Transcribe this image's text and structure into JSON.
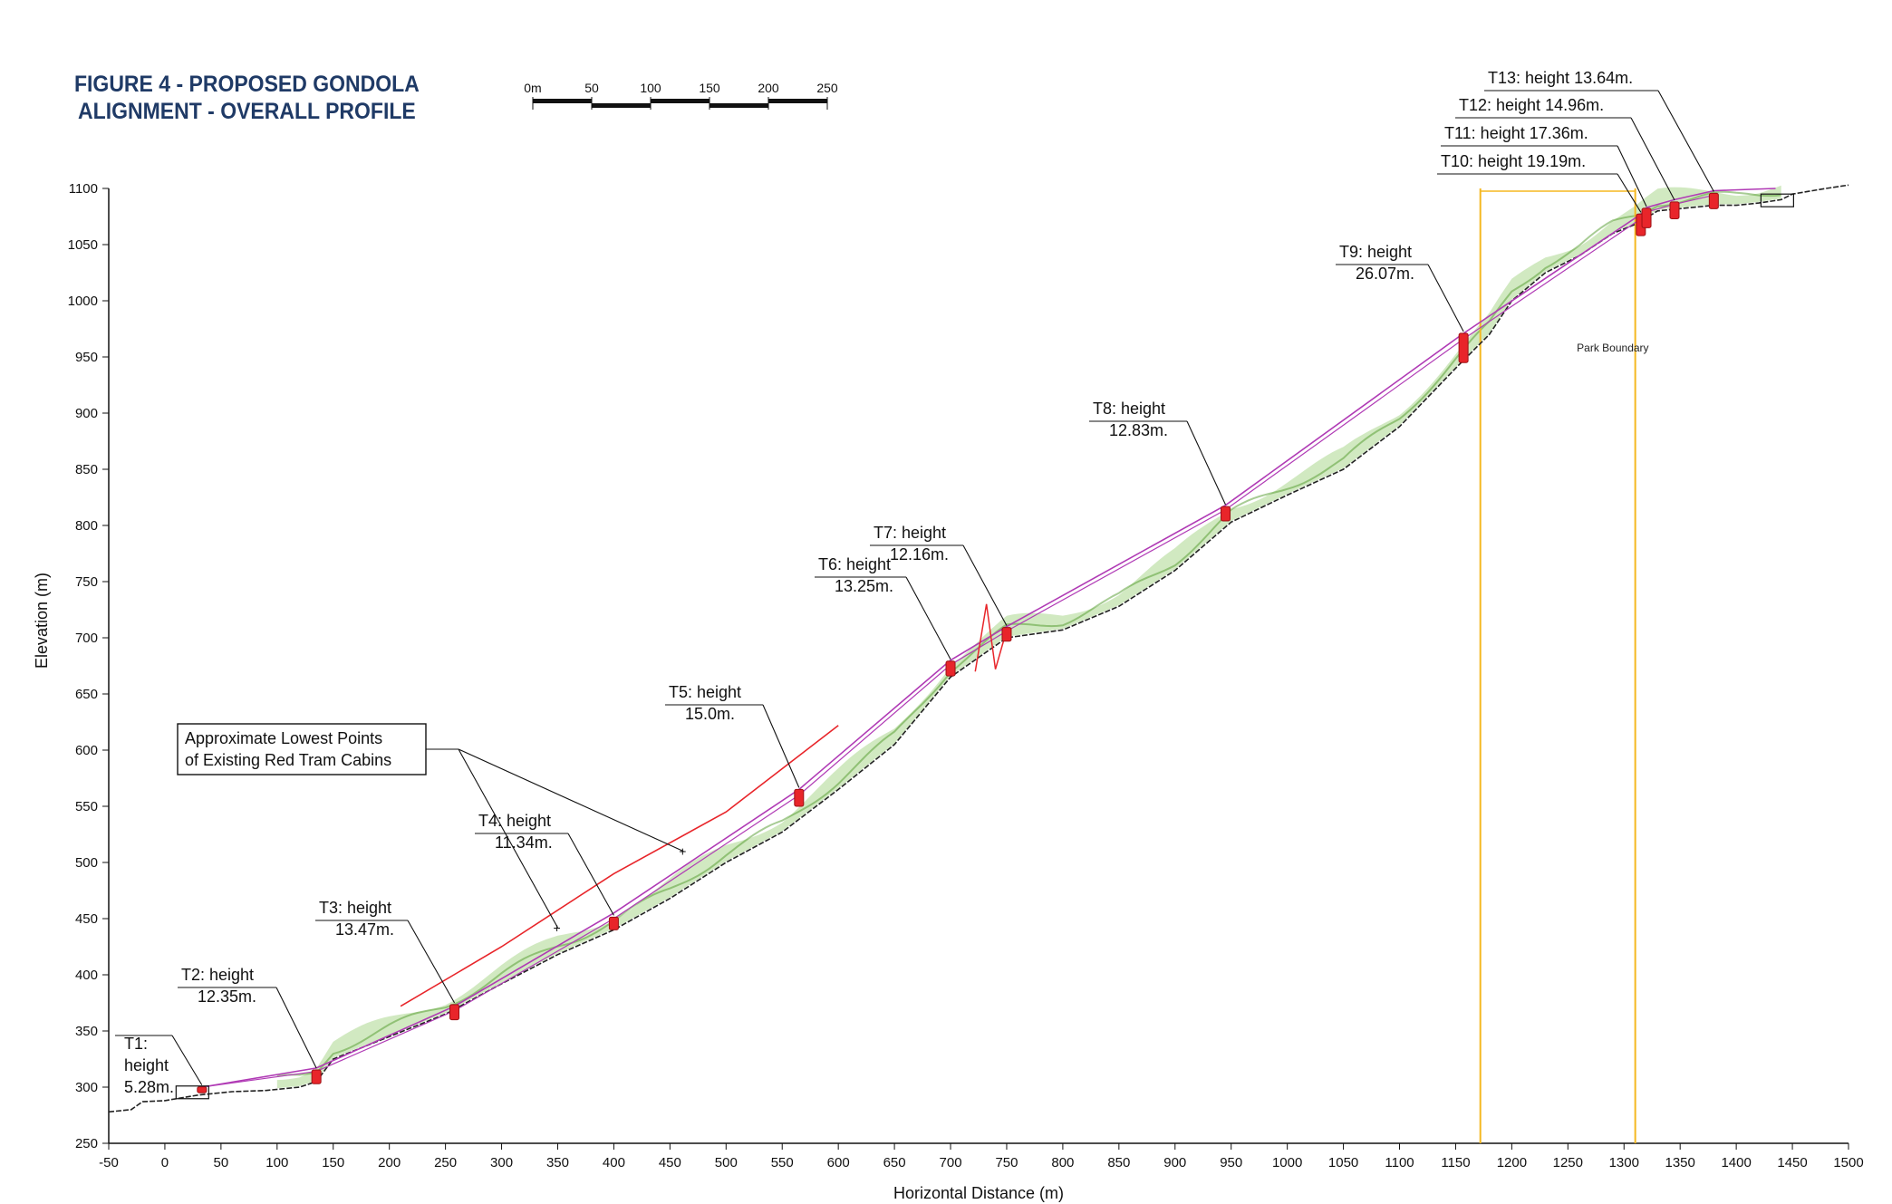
{
  "figure_title_line1": "FIGURE 4 - PROPOSED GONDOLA",
  "figure_title_line2": "ALIGNMENT - OVERALL PROFILE",
  "scale_bar": {
    "labels": [
      "0m",
      "50",
      "100",
      "150",
      "200",
      "250"
    ],
    "values": [
      0,
      50,
      100,
      150,
      200,
      250
    ]
  },
  "colors": {
    "title": "#1f3a66",
    "tower": "#e8252a",
    "cable": "#b03ab5",
    "ground": "#222222",
    "vegetation": "#7bbf4e",
    "cabin_line": "#e8252a",
    "park_boundary": "#f5b820"
  },
  "chart_data": {
    "type": "line",
    "xlabel": "Horizontal Distance (m)",
    "ylabel": "Elevation (m)",
    "xlim": [
      -50,
      1500
    ],
    "ylim": [
      250,
      1100
    ],
    "x_ticks": [
      -50,
      0,
      50,
      100,
      150,
      200,
      250,
      300,
      350,
      400,
      450,
      500,
      550,
      600,
      650,
      700,
      750,
      800,
      850,
      900,
      950,
      1000,
      1050,
      1100,
      1150,
      1200,
      1250,
      1300,
      1350,
      1400,
      1450,
      1500
    ],
    "y_ticks": [
      250,
      300,
      350,
      400,
      450,
      500,
      550,
      600,
      650,
      700,
      750,
      800,
      850,
      900,
      950,
      1000,
      1050,
      1100
    ],
    "grid": false,
    "ground_profile": {
      "x": [
        -50,
        -30,
        -20,
        0,
        30,
        60,
        90,
        120,
        135,
        150,
        200,
        250,
        300,
        350,
        400,
        450,
        500,
        550,
        600,
        650,
        700,
        750,
        800,
        850,
        900,
        950,
        1000,
        1050,
        1100,
        1150,
        1180,
        1200,
        1230,
        1260,
        1290,
        1310,
        1330,
        1350,
        1380,
        1400,
        1420,
        1440,
        1450,
        1480,
        1500
      ],
      "y": [
        278,
        280,
        287,
        288,
        293,
        296,
        297,
        300,
        305,
        325,
        345,
        365,
        392,
        418,
        440,
        468,
        500,
        527,
        565,
        605,
        665,
        700,
        707,
        728,
        760,
        803,
        827,
        850,
        888,
        940,
        970,
        1000,
        1025,
        1040,
        1060,
        1068,
        1080,
        1082,
        1085,
        1085,
        1087,
        1090,
        1095,
        1100,
        1103
      ]
    },
    "series": [
      {
        "x": [
          33,
          135,
          258,
          400,
          565,
          700,
          750,
          945,
          1157,
          1315,
          1320,
          1345,
          1380,
          1435
        ],
        "y": [
          300,
          317,
          372,
          455,
          565,
          680,
          710,
          818,
          971,
          1077,
          1083,
          1090,
          1098,
          1100
        ]
      },
      {
        "x": [
          33,
          135,
          258,
          400,
          565,
          700,
          750,
          945,
          1157,
          1315,
          1320,
          1345,
          1380
        ],
        "y": [
          300,
          314,
          368,
          450,
          560,
          676,
          706,
          814,
          966,
          1073,
          1079,
          1086,
          1094
        ]
      }
    ],
    "towers": [
      {
        "name": "T1",
        "x": 33,
        "base": 295,
        "height": 5.28
      },
      {
        "name": "T2",
        "x": 135,
        "base": 303,
        "height": 12.35
      },
      {
        "name": "T3",
        "x": 258,
        "base": 360,
        "height": 13.47
      },
      {
        "name": "T4",
        "x": 400,
        "base": 440,
        "height": 11.34
      },
      {
        "name": "T5",
        "x": 565,
        "base": 550,
        "height": 15.0
      },
      {
        "name": "T6",
        "x": 700,
        "base": 666,
        "height": 13.25
      },
      {
        "name": "T7",
        "x": 750,
        "base": 697,
        "height": 12.16
      },
      {
        "name": "T8",
        "x": 945,
        "base": 804,
        "height": 12.83
      },
      {
        "name": "T9",
        "x": 1157,
        "base": 945,
        "height": 26.07
      },
      {
        "name": "T10",
        "x": 1315,
        "base": 1058,
        "height": 19.19
      },
      {
        "name": "T11",
        "x": 1320,
        "base": 1065,
        "height": 17.36
      },
      {
        "name": "T12",
        "x": 1345,
        "base": 1073,
        "height": 14.96
      },
      {
        "name": "T13",
        "x": 1380,
        "base": 1082,
        "height": 13.64
      }
    ],
    "annotations": [
      {
        "lines": [
          "T1:",
          "height",
          "5.28m."
        ]
      },
      {
        "lines": [
          "T2: height",
          "12.35m."
        ]
      },
      {
        "lines": [
          "T3: height",
          "13.47m."
        ]
      },
      {
        "lines": [
          "T4: height",
          "11.34m."
        ]
      },
      {
        "lines": [
          "T5: height",
          "15.0m."
        ]
      },
      {
        "lines": [
          "T6: height",
          "13.25m."
        ]
      },
      {
        "lines": [
          "T7: height",
          "12.16m."
        ]
      },
      {
        "lines": [
          "T8: height",
          "12.83m."
        ]
      },
      {
        "lines": [
          "T9: height",
          "26.07m."
        ]
      },
      {
        "lines": [
          "T10: height 19.19m."
        ]
      },
      {
        "lines": [
          "T11: height 17.36m."
        ]
      },
      {
        "lines": [
          "T12: height 14.96m."
        ]
      },
      {
        "lines": [
          "T13: height 13.64m."
        ]
      }
    ],
    "cabin_callout": {
      "lines": [
        "Approximate Lowest Points",
        "of Existing Red Tram Cabins"
      ],
      "points": [
        {
          "x": 350,
          "y": 442
        },
        {
          "x": 462,
          "y": 510
        }
      ]
    },
    "cabin_line": {
      "x": [
        210,
        300,
        400,
        500,
        600
      ],
      "y": [
        372,
        425,
        490,
        545,
        622
      ]
    },
    "park_boundary": {
      "label": "Park Boundary",
      "x1": 1172,
      "x2": 1310,
      "label_x": 1290,
      "label_y": 955,
      "top_y": 1100
    }
  }
}
